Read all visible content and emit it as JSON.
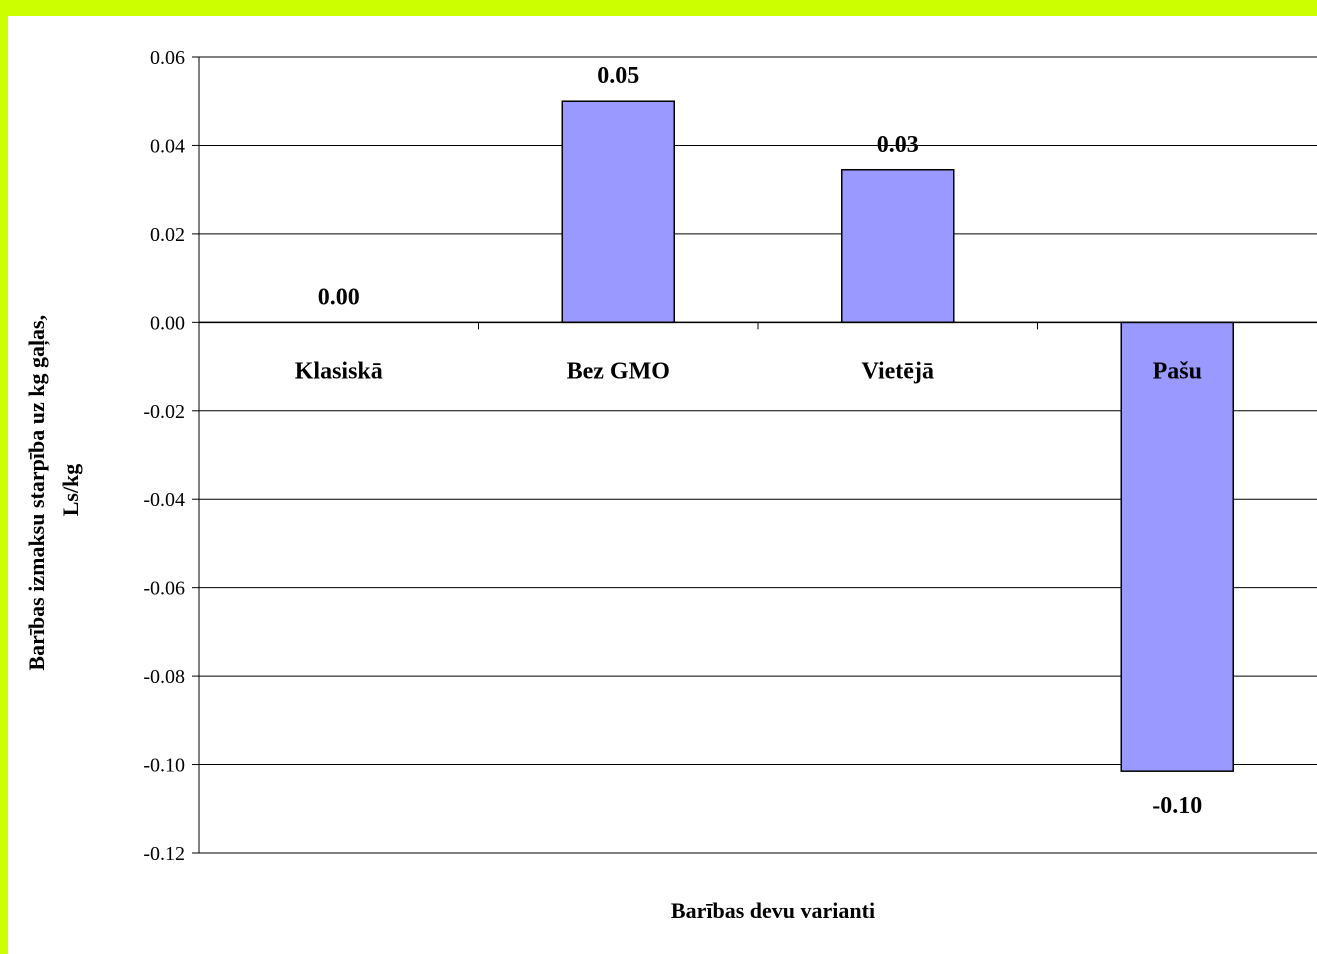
{
  "chart_data": {
    "type": "bar",
    "title": "",
    "categories": [
      "Klasiskā",
      "Bez GMO",
      "Vietējā",
      "Pašu"
    ],
    "values": [
      0.0,
      0.05,
      0.0345,
      -0.1015
    ],
    "data_labels": [
      "0.00",
      "0.05",
      "0.03",
      "-0.10"
    ],
    "xlabel": "Barības devu varianti",
    "ylabel": [
      "Barības izmaksu starpība uz kg gaļas,",
      "Ls/kg"
    ],
    "ylim": [
      -0.12,
      0.06
    ],
    "yticks": [
      0.06,
      0.04,
      0.02,
      0.0,
      -0.02,
      -0.04,
      -0.06,
      -0.08,
      -0.1,
      -0.12
    ],
    "ytick_labels": [
      "0.06",
      "0.04",
      "0.02",
      "0.00",
      "-0.02",
      "-0.04",
      "-0.06",
      "-0.08",
      "-0.10",
      "-0.12"
    ],
    "grid": true,
    "legend": "none",
    "colors": {
      "bar": "#9999ff",
      "bar_stroke": "#000000",
      "frame": "#ccff00"
    }
  }
}
